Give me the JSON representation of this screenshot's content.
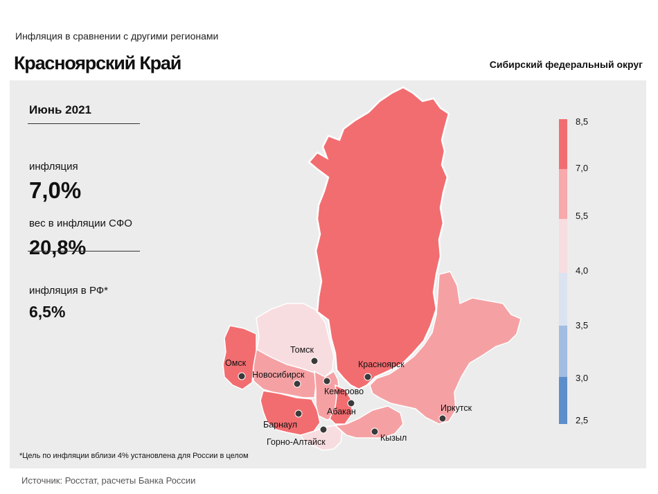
{
  "header": {
    "subtitle": "Инфляция в сравнении с другими регионами",
    "title": "Красноярский Край",
    "district": "Сибирский федеральный округ"
  },
  "stats": {
    "period": "Июнь 2021",
    "inflation_label": "инфляция",
    "inflation_value": "7,0%",
    "weight_label": "вес в инфляции СФО",
    "weight_value": "20,8%",
    "rf_label": "инфляция в РФ*",
    "rf_value": "6,5%"
  },
  "footnote": "*Цель по инфляции вблизи 4% установлена для России в целом",
  "source": "Источник: Росстат, расчеты Банка России",
  "legend": {
    "labels": [
      "8,5",
      "7,0",
      "5,5",
      "4,0",
      "3,5",
      "3,0",
      "2,5"
    ],
    "colors": [
      "#f26d70",
      "#f7a9ab",
      "#f8dde0",
      "#dbe3f1",
      "#a3bde2",
      "#5c8ecb"
    ]
  },
  "colors": {
    "high": "#f26d70",
    "mid": "#f5a1a4",
    "low": "#f8dde0",
    "panel": "#ececec"
  },
  "cities": [
    {
      "name": "Томск"
    },
    {
      "name": "Омск"
    },
    {
      "name": "Новосибирск"
    },
    {
      "name": "Красноярск"
    },
    {
      "name": "Кемерово"
    },
    {
      "name": "Абакан"
    },
    {
      "name": "Барнаул"
    },
    {
      "name": "Горно-Алтайск"
    },
    {
      "name": "Кызыл"
    },
    {
      "name": "Иркутск"
    }
  ]
}
